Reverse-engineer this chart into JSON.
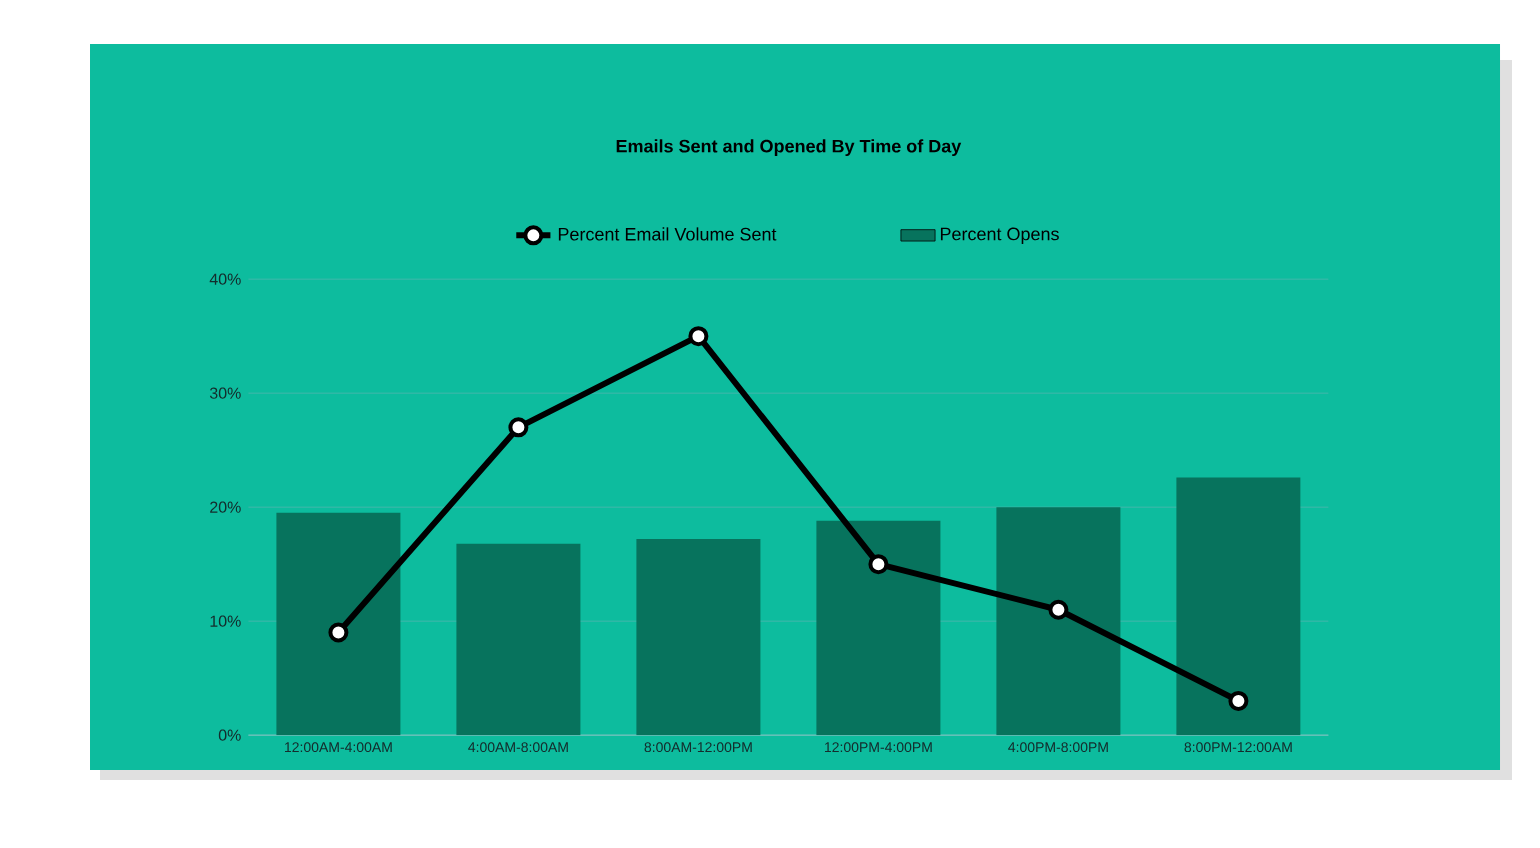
{
  "chart_data": {
    "type": "bar",
    "title": "Emails Sent and Opened By Time of Day",
    "categories": [
      "12:00AM-4:00AM",
      "4:00AM-8:00AM",
      "8:00AM-12:00PM",
      "12:00PM-4:00PM",
      "4:00PM-8:00PM",
      "8:00PM-12:00AM"
    ],
    "series": [
      {
        "name": "Percent Opens",
        "color": "#07735d",
        "values": [
          19.5,
          16.8,
          17.2,
          18.8,
          20,
          22.6
        ]
      },
      {
        "name": "Percent Email Volume Sent",
        "type": "line",
        "color": "#000000",
        "values": [
          9,
          27,
          35,
          15,
          11,
          3
        ]
      }
    ],
    "ylim": [
      0,
      40
    ],
    "yticks": [
      {
        "value": 0,
        "label": "0%"
      },
      {
        "value": 10,
        "label": "10%"
      },
      {
        "value": 20,
        "label": "20%"
      },
      {
        "value": 30,
        "label": "30%"
      },
      {
        "value": 40,
        "label": "40%"
      }
    ],
    "grid": "y",
    "legend": "top",
    "marker": "circle",
    "line_style": "solid"
  }
}
